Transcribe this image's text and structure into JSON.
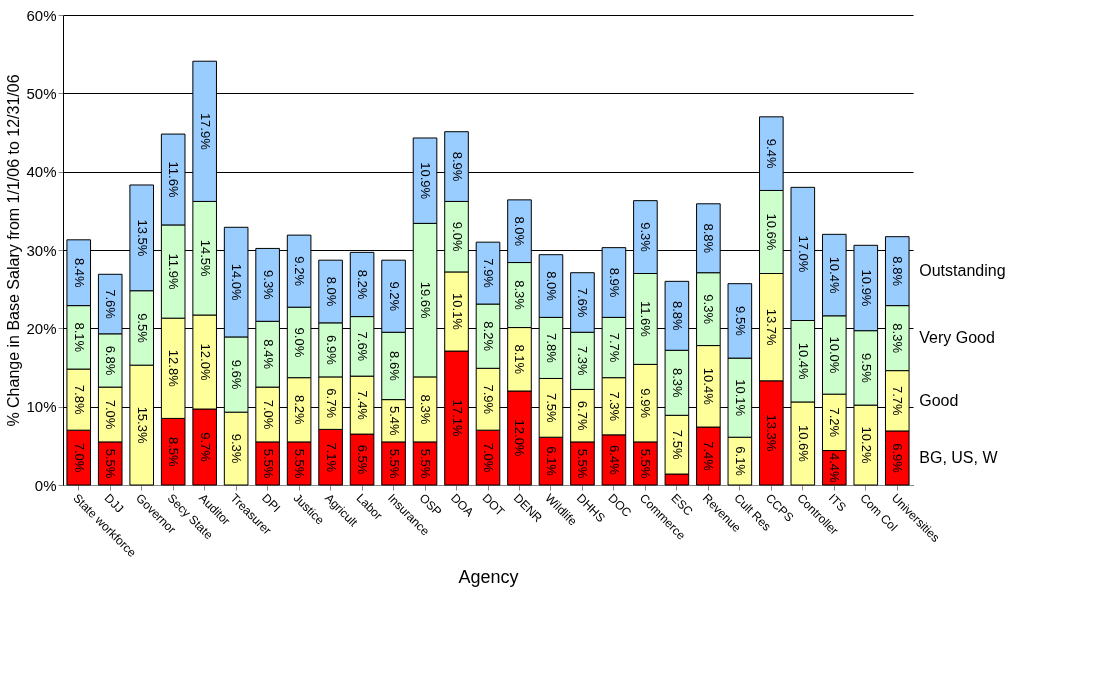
{
  "chart_data": {
    "type": "bar",
    "stacked": true,
    "xlabel": "Agency",
    "ylabel": "% Change in Base Salary  from 1/1/06 to 12/31/06",
    "categories": [
      "State workforce",
      "DJJ",
      "Governor",
      "Secy State",
      "Auditor",
      "Treasurer",
      "DPI",
      "Justice",
      "Agricult",
      "Labor",
      "Insurance",
      "OSP",
      "DOA",
      "DOT",
      "DENR",
      "Wildlife",
      "DHHS",
      "DOC",
      "Commerce",
      "ESC",
      "Revenue",
      "Cult Res",
      "CCPS",
      "Controller",
      "ITS",
      "Com Col",
      "Universities"
    ],
    "series": [
      {
        "name": "BG, US, W",
        "color": "#ff0000",
        "values": [
          7.0,
          5.5,
          null,
          8.5,
          9.7,
          null,
          5.5,
          5.5,
          7.1,
          6.5,
          5.5,
          5.5,
          17.1,
          7.0,
          12.0,
          6.1,
          5.5,
          6.4,
          5.5,
          1.4,
          7.4,
          null,
          13.3,
          null,
          4.4,
          null,
          6.9
        ],
        "value_labels": [
          "7.0%",
          "5.5%",
          null,
          "8.5%",
          "9.7%",
          null,
          "5.5%",
          "5.5%",
          "7.1%",
          "6.5%",
          "5.5%",
          "5.5%",
          "17.1%",
          "7.0%",
          "12.0%",
          "6.1%",
          "5.5%",
          "6.4%",
          "5.5%",
          null,
          "7.4%",
          null,
          "13.3%",
          null,
          "4.4%",
          null,
          "6.9%"
        ]
      },
      {
        "name": "Good",
        "color": "#ffff99",
        "values": [
          7.8,
          7.0,
          15.3,
          12.8,
          12.0,
          9.3,
          7.0,
          8.2,
          6.7,
          7.4,
          5.4,
          8.3,
          10.1,
          7.9,
          8.1,
          7.5,
          6.7,
          7.3,
          9.9,
          7.5,
          10.4,
          6.1,
          13.7,
          10.6,
          7.2,
          10.2,
          7.7
        ],
        "value_labels": [
          "7.8%",
          "7.0%",
          "15.3%",
          "12.8%",
          "12.0%",
          "9.3%",
          "7.0%",
          "8.2%",
          "6.7%",
          "7.4%",
          "5.4%",
          "8.3%",
          "10.1%",
          "7.9%",
          "8.1%",
          "7.5%",
          "6.7%",
          "7.3%",
          "9.9%",
          "7.5%",
          "10.4%",
          "6.1%",
          "13.7%",
          "10.6%",
          "7.2%",
          "10.2%",
          "7.7%"
        ]
      },
      {
        "name": "Very Good",
        "color": "#ccffcc",
        "values": [
          8.1,
          6.8,
          9.5,
          11.9,
          14.5,
          9.6,
          8.4,
          9.0,
          6.9,
          7.6,
          8.6,
          19.6,
          9.0,
          8.2,
          8.3,
          7.8,
          7.3,
          7.7,
          11.6,
          8.3,
          9.3,
          10.1,
          10.6,
          10.4,
          10.0,
          9.5,
          8.3
        ],
        "value_labels": [
          "8.1%",
          "6.8%",
          "9.5%",
          "11.9%",
          "14.5%",
          "9.6%",
          "8.4%",
          "9.0%",
          "6.9%",
          "7.6%",
          "8.6%",
          "19.6%",
          "9.0%",
          "8.2%",
          "8.3%",
          "7.8%",
          "7.3%",
          "7.7%",
          "11.6%",
          "8.3%",
          "9.3%",
          "10.1%",
          "10.6%",
          "10.4%",
          "10.0%",
          "9.5%",
          "8.3%"
        ]
      },
      {
        "name": "Outstanding",
        "color": "#99ccff",
        "values": [
          8.4,
          7.6,
          13.5,
          11.6,
          17.9,
          14.0,
          9.3,
          9.2,
          8.0,
          8.2,
          9.2,
          10.9,
          8.9,
          7.9,
          8.0,
          8.0,
          7.6,
          8.9,
          9.3,
          8.8,
          8.8,
          9.5,
          9.4,
          17.0,
          10.4,
          10.9,
          8.8
        ],
        "value_labels": [
          "8.4%",
          "7.6%",
          "13.5%",
          "11.6%",
          "17.9%",
          "14.0%",
          "9.3%",
          "9.2%",
          "8.0%",
          "8.2%",
          "9.2%",
          "10.9%",
          "8.9%",
          "7.9%",
          "8.0%",
          "8.0%",
          "7.6%",
          "8.9%",
          "9.3%",
          "8.8%",
          "8.8%",
          "9.5%",
          "9.4%",
          "17.0%",
          "10.4%",
          "10.9%",
          "8.8%"
        ]
      }
    ],
    "ylim": [
      0,
      60
    ],
    "yticks": [
      {
        "value": 0,
        "label": "0%"
      },
      {
        "value": 10,
        "label": "10%"
      },
      {
        "value": 20,
        "label": "20%"
      },
      {
        "value": 30,
        "label": "30%"
      },
      {
        "value": 40,
        "label": "40%"
      },
      {
        "value": 50,
        "label": "50%"
      },
      {
        "value": 60,
        "label": "60%"
      }
    ],
    "grid": "y",
    "legend": "right"
  }
}
